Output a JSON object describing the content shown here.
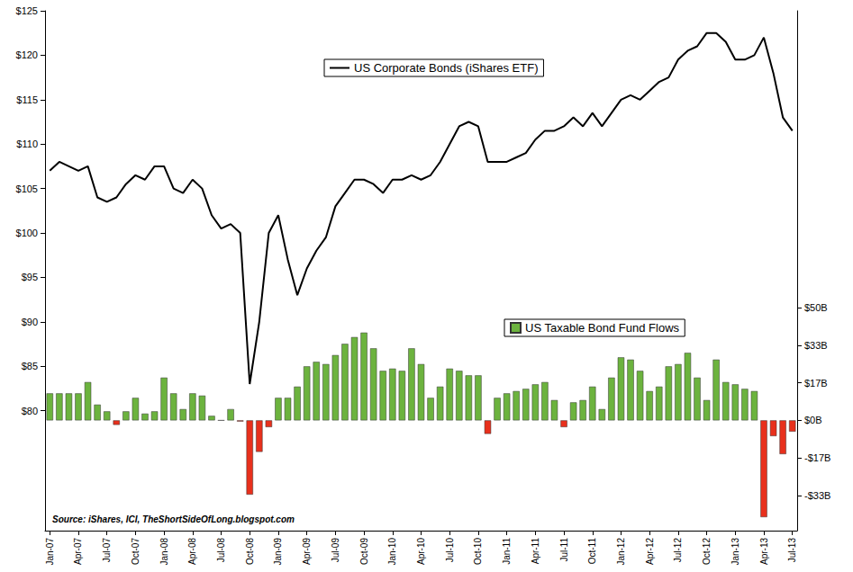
{
  "chart_data": {
    "type": "line",
    "annotation": "Source: iShares, ICI, TheShortSideOfLong.blogspot.com",
    "categories": [
      "Jan-07",
      null,
      null,
      "Apr-07",
      null,
      null,
      "Jul-07",
      null,
      null,
      "Oct-07",
      null,
      null,
      "Jan-08",
      null,
      null,
      "Apr-08",
      null,
      null,
      "Jul-08",
      null,
      null,
      "Oct-08",
      null,
      null,
      "Jan-09",
      null,
      null,
      "Apr-09",
      null,
      null,
      "Jul-09",
      null,
      null,
      "Oct-09",
      null,
      null,
      "Jan-10",
      null,
      null,
      "Apr-10",
      null,
      null,
      "Jul-10",
      null,
      null,
      "Oct-10",
      null,
      null,
      "Jan-11",
      null,
      null,
      "Apr-11",
      null,
      null,
      "Jul-11",
      null,
      null,
      "Oct-11",
      null,
      null,
      "Jan-12",
      null,
      null,
      "Apr-12",
      null,
      null,
      "Jul-12",
      null,
      null,
      "Oct-12",
      null,
      null,
      "Jan-13",
      null,
      null,
      "Apr-13",
      null,
      null,
      "Jul-13"
    ],
    "series": [
      {
        "name": "US Taxable Bond Fund Flows",
        "type": "bar",
        "axis": "y2",
        "color": "#6cb33e",
        "values": [
          12,
          12,
          12,
          12,
          17,
          7,
          4,
          -2,
          4,
          10,
          3,
          4,
          19,
          12,
          5,
          12,
          11,
          2,
          0,
          5,
          -0.5,
          -33,
          -14,
          -3,
          10,
          10,
          15,
          24,
          26,
          25,
          29,
          34,
          37,
          39,
          32,
          22,
          23,
          22,
          32,
          25,
          10,
          15,
          23,
          22,
          20,
          20,
          -6,
          10,
          12,
          13,
          14,
          16,
          17,
          9,
          -3,
          8,
          9,
          15,
          5,
          19,
          28,
          27,
          22,
          13,
          15,
          24,
          25,
          30,
          19,
          9,
          27,
          17,
          16,
          14,
          13,
          -43,
          -7,
          -15,
          -5
        ],
        "colors": [
          "#6cb33e",
          "#6cb33e",
          "#6cb33e",
          "#6cb33e",
          "#6cb33e",
          "#6cb33e",
          "#6cb33e",
          "#e8301c",
          "#6cb33e",
          "#6cb33e",
          "#6cb33e",
          "#6cb33e",
          "#6cb33e",
          "#6cb33e",
          "#6cb33e",
          "#6cb33e",
          "#6cb33e",
          "#6cb33e",
          "#6cb33e",
          "#6cb33e",
          "#e8301c",
          "#e8301c",
          "#e8301c",
          "#e8301c",
          "#6cb33e",
          "#6cb33e",
          "#6cb33e",
          "#6cb33e",
          "#6cb33e",
          "#6cb33e",
          "#6cb33e",
          "#6cb33e",
          "#6cb33e",
          "#6cb33e",
          "#6cb33e",
          "#6cb33e",
          "#6cb33e",
          "#6cb33e",
          "#6cb33e",
          "#6cb33e",
          "#6cb33e",
          "#6cb33e",
          "#6cb33e",
          "#6cb33e",
          "#6cb33e",
          "#6cb33e",
          "#e8301c",
          "#6cb33e",
          "#6cb33e",
          "#6cb33e",
          "#6cb33e",
          "#6cb33e",
          "#6cb33e",
          "#6cb33e",
          "#e8301c",
          "#6cb33e",
          "#6cb33e",
          "#6cb33e",
          "#6cb33e",
          "#6cb33e",
          "#6cb33e",
          "#6cb33e",
          "#6cb33e",
          "#6cb33e",
          "#6cb33e",
          "#6cb33e",
          "#6cb33e",
          "#6cb33e",
          "#6cb33e",
          "#6cb33e",
          "#6cb33e",
          "#6cb33e",
          "#6cb33e",
          "#6cb33e",
          "#6cb33e",
          "#e8301c",
          "#e8301c",
          "#e8301c",
          "#e8301c"
        ]
      },
      {
        "name": "US Corporate Bonds (iShares ETF)",
        "type": "line",
        "color": "#000000",
        "values": [
          107,
          108,
          107.5,
          107,
          107.5,
          104,
          103.5,
          104,
          105.5,
          106.5,
          106,
          107.5,
          107.5,
          105,
          104.5,
          106,
          105,
          102,
          100.5,
          101,
          100,
          83,
          90,
          100,
          102,
          97,
          93,
          96,
          98,
          99.5,
          103,
          104.5,
          106,
          106,
          105.5,
          104.5,
          106,
          106,
          106.5,
          106,
          106.5,
          108,
          110,
          112,
          112.5,
          112,
          108,
          108,
          108,
          108.5,
          109,
          110.5,
          111.5,
          111.5,
          112,
          113,
          112,
          113.5,
          112,
          113.5,
          115,
          115.5,
          115,
          116,
          117,
          117.5,
          119.5,
          120.5,
          121,
          122.5,
          122.5,
          121.5,
          119.5,
          119.5,
          120,
          122,
          118,
          113,
          111.5
        ]
      }
    ],
    "ylim": [
      66.5,
      125
    ],
    "yticks": [
      {
        "value": 80,
        "label": "$80"
      },
      {
        "value": 85,
        "label": "$85"
      },
      {
        "value": 90,
        "label": "$90"
      },
      {
        "value": 95,
        "label": "$95"
      },
      {
        "value": 100,
        "label": "$100"
      },
      {
        "value": 105,
        "label": "$105"
      },
      {
        "value": 110,
        "label": "$110"
      },
      {
        "value": 115,
        "label": "$115"
      },
      {
        "value": 120,
        "label": "$120"
      },
      {
        "value": 125,
        "label": "$125"
      }
    ],
    "y2lim": [
      -49,
      182
    ],
    "y2ticks": [
      {
        "value": -33.33,
        "label": "-$33B"
      },
      {
        "value": -16.67,
        "label": "-$17B"
      },
      {
        "value": 0,
        "label": "$0B"
      },
      {
        "value": 16.67,
        "label": "$17B"
      },
      {
        "value": 33.33,
        "label": "$33B"
      },
      {
        "value": 50,
        "label": "$50B"
      }
    ],
    "grid": false,
    "legend": "top"
  }
}
